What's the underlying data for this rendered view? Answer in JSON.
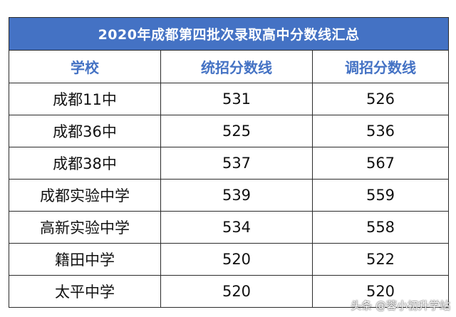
{
  "table": {
    "title": "2020年成都第四批次录取高中分数线汇总",
    "headers": [
      "学校",
      "统招分数线",
      "调招分数线"
    ],
    "rows": [
      [
        "成都11中",
        "531",
        "526"
      ],
      [
        "成都36中",
        "525",
        "536"
      ],
      [
        "成都38中",
        "537",
        "567"
      ],
      [
        "成都实验中学",
        "539",
        "559"
      ],
      [
        "高新实验中学",
        "534",
        "558"
      ],
      [
        "籍田中学",
        "520",
        "522"
      ],
      [
        "太平中学",
        "520",
        "520"
      ]
    ],
    "header_bg_color": "#4472c4",
    "header_text_color": "#4472c4"
  },
  "watermark": "头条 @蓉小初升学站"
}
